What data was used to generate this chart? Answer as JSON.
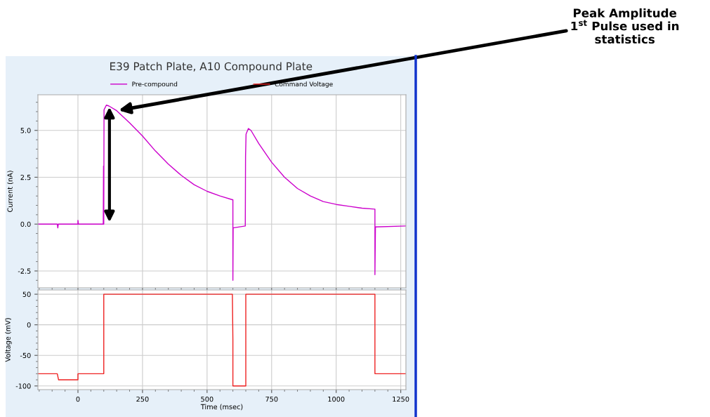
{
  "chart_data": [
    {
      "type": "line",
      "title": "E39 Patch Plate, A10 Compound Plate",
      "ylabel": "Current (nA)",
      "series": [
        {
          "name": "Pre-compound",
          "color": "#cc00cc",
          "x": [
            -155,
            -80,
            -78,
            -76,
            0,
            0,
            2,
            98,
            99,
            100,
            101,
            110,
            120,
            150,
            200,
            250,
            300,
            350,
            400,
            450,
            500,
            550,
            598,
            600,
            600,
            601,
            648,
            649,
            651,
            660,
            670,
            700,
            750,
            800,
            850,
            900,
            950,
            1000,
            1050,
            1100,
            1148,
            1150,
            1150,
            1152,
            1270
          ],
          "values": [
            0,
            0,
            -0.2,
            0,
            0,
            0.2,
            0,
            0,
            3.1,
            0,
            6.1,
            6.35,
            6.3,
            6.05,
            5.4,
            4.7,
            3.9,
            3.2,
            2.6,
            2.1,
            1.75,
            1.5,
            1.3,
            1.3,
            -3.0,
            -0.2,
            -0.1,
            3.6,
            4.8,
            5.1,
            5.0,
            4.3,
            3.3,
            2.5,
            1.9,
            1.5,
            1.2,
            1.05,
            0.95,
            0.85,
            0.8,
            0.8,
            -2.7,
            -0.15,
            -0.1
          ]
        }
      ],
      "xlim": [
        -155,
        1270
      ],
      "xticks": [
        0,
        250,
        500,
        750,
        1000,
        1250
      ],
      "ylim": [
        -3.4,
        6.9
      ],
      "yticks": [
        {
          "value": -2.5,
          "label": "-2.5"
        },
        {
          "value": 0,
          "label": "0.0"
        },
        {
          "value": 2.5,
          "label": "2.5"
        },
        {
          "value": 5,
          "label": "5.0"
        }
      ],
      "tick_labels": "y",
      "grid": true,
      "legend": "top",
      "annotations": [
        {
          "text": "Peak Amplitude\n1$^{st}$ Pulse used in\nstatistics",
          "x": 150,
          "y": 6.05
        }
      ]
    },
    {
      "type": "line",
      "xlabel": "Time (msec)",
      "ylabel": "Voltage (mV)",
      "series": [
        {
          "name": "Command Voltage",
          "color": "#ee2222",
          "x": [
            -155,
            -80,
            -75,
            0,
            0,
            100,
            100,
            598,
            600,
            600,
            650,
            650,
            1150,
            1150,
            1270
          ],
          "values": [
            -80,
            -80,
            -90,
            -90,
            -80,
            -80,
            50,
            50,
            -25,
            -100,
            -100,
            50,
            50,
            -80,
            -80
          ]
        }
      ],
      "xlim": [
        -155,
        1270
      ],
      "xticks": [
        0,
        250,
        500,
        750,
        1000,
        1250
      ],
      "ylim": [
        -106,
        57
      ],
      "yticks": [
        -100,
        -50,
        0,
        50
      ],
      "grid": true,
      "legend": "top"
    }
  ]
}
